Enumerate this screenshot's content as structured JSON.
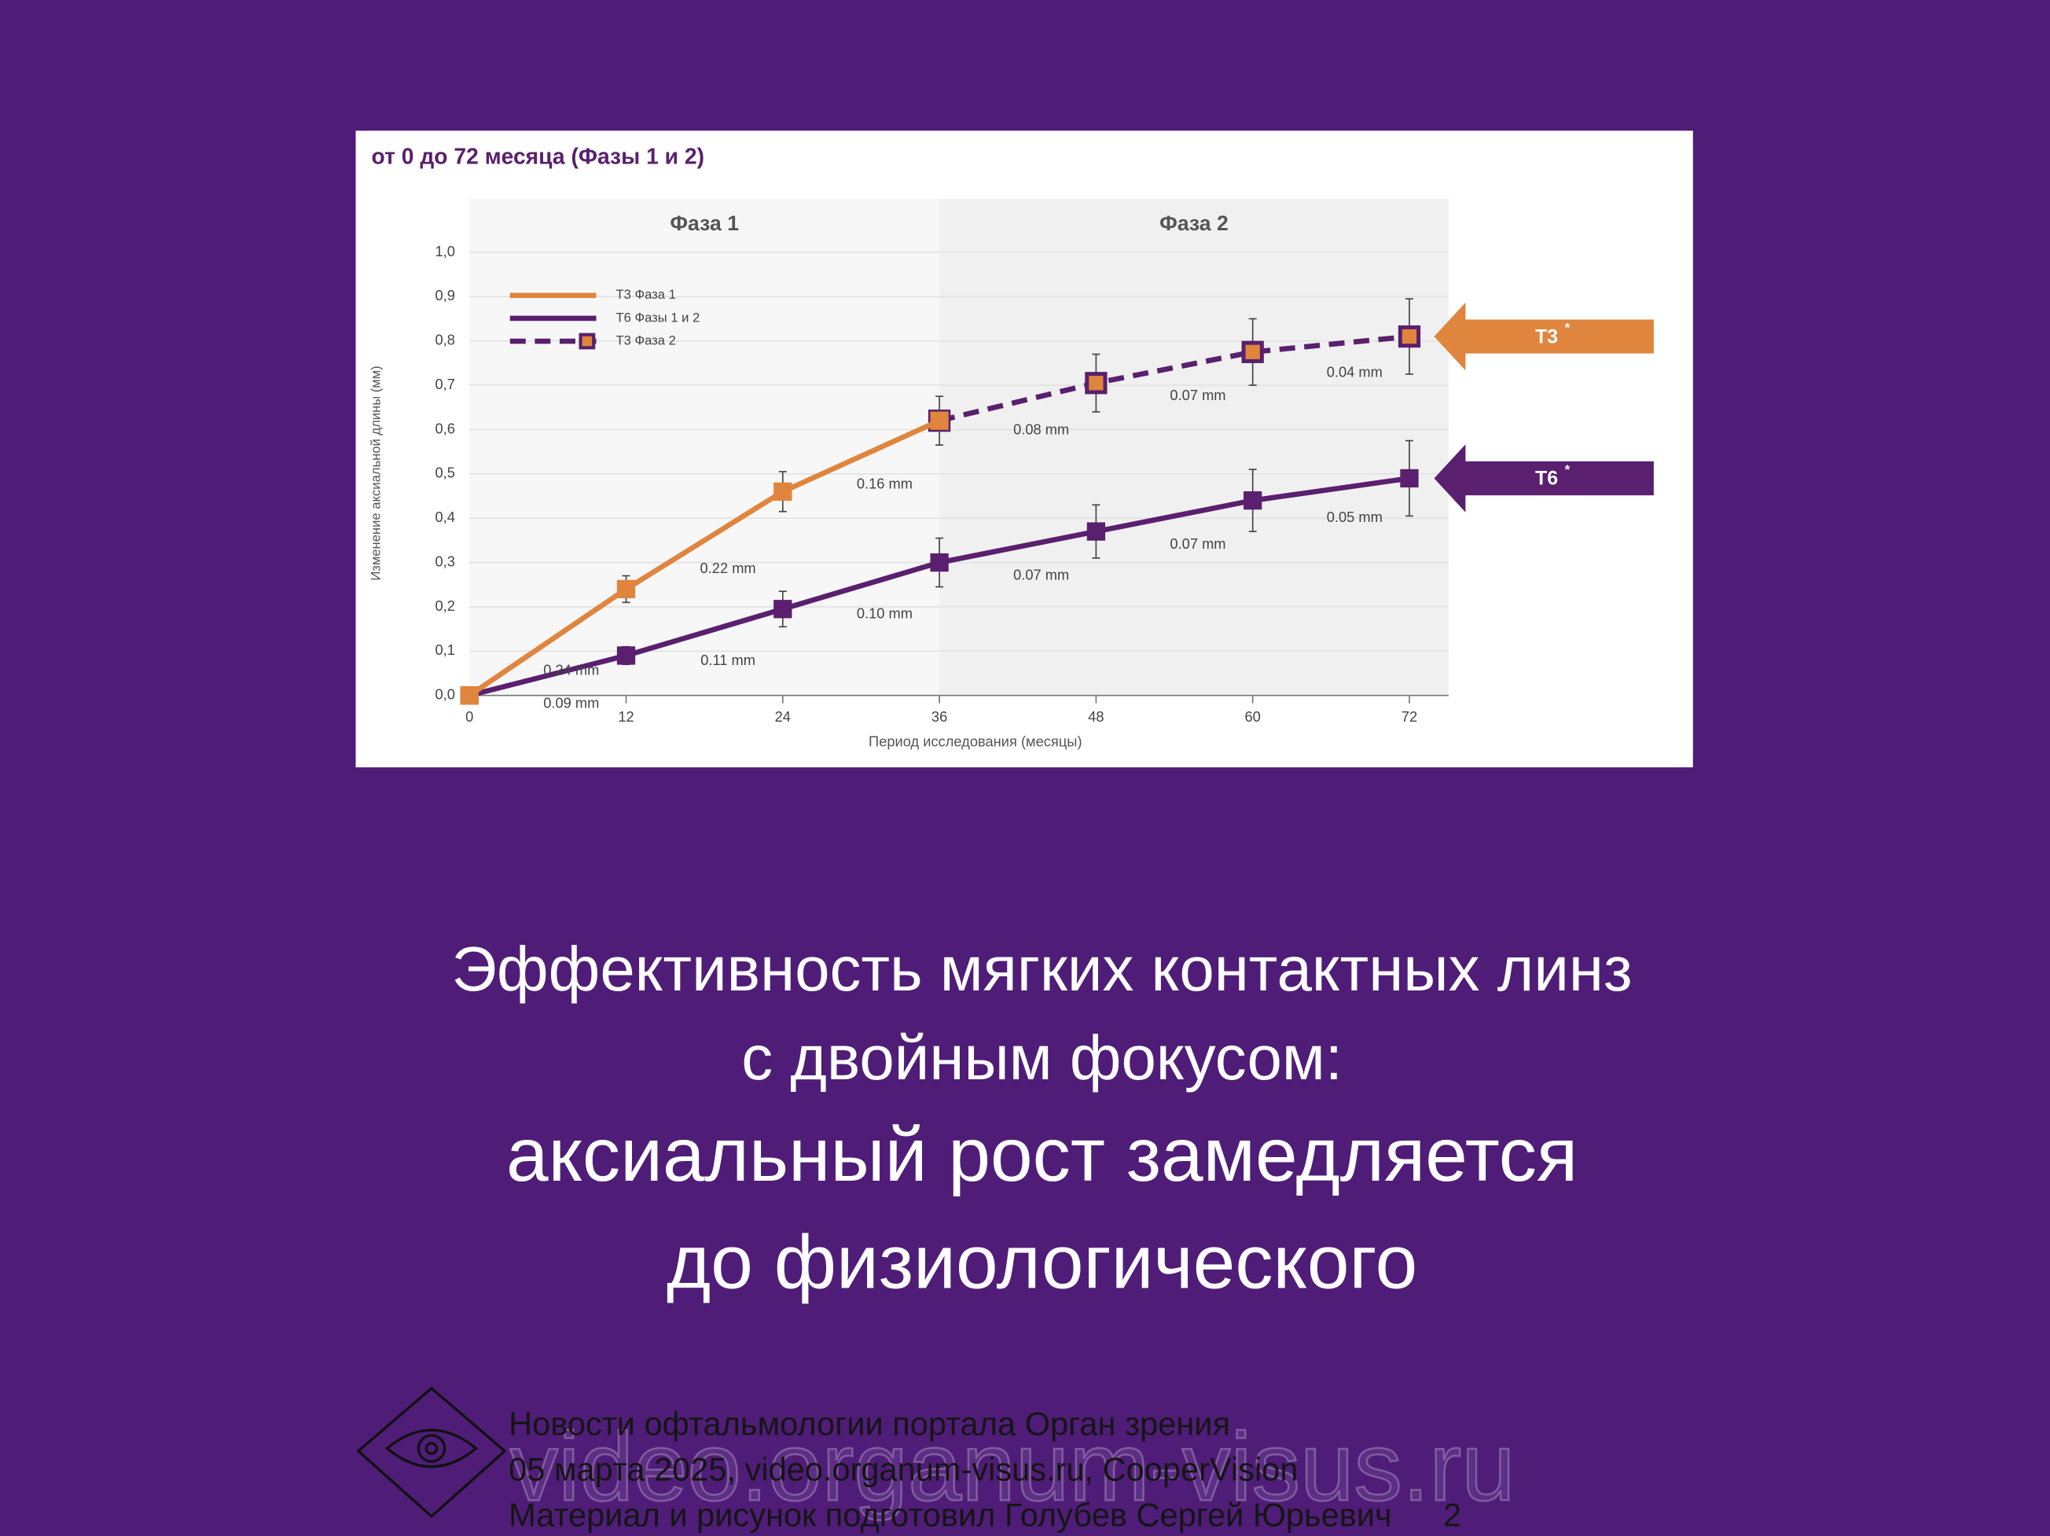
{
  "chart_data": {
    "type": "line",
    "title": "от 0 до 72 месяца (Фазы 1 и 2)",
    "x_label": "Период исследования (месяцы)",
    "y_label": "Изменение аксиальной длины (мм)",
    "x": [
      0,
      12,
      24,
      36,
      48,
      60,
      72
    ],
    "xlim": [
      0,
      75
    ],
    "xticks": [
      0,
      12,
      24,
      36,
      48,
      60,
      72
    ],
    "ylim": [
      0,
      1
    ],
    "yticks": [
      {
        "value": 0,
        "label": "0,0"
      },
      {
        "value": 0.1,
        "label": "0,1"
      },
      {
        "value": 0.2,
        "label": "0,2"
      },
      {
        "value": 0.3,
        "label": "0,3"
      },
      {
        "value": 0.4,
        "label": "0,4"
      },
      {
        "value": 0.5,
        "label": "0,5"
      },
      {
        "value": 0.6,
        "label": "0,6"
      },
      {
        "value": 0.7,
        "label": "0,7"
      },
      {
        "value": 0.8,
        "label": "0,8"
      },
      {
        "value": 0.9,
        "label": "0,9"
      },
      {
        "value": 1,
        "label": "1,0"
      }
    ],
    "grid": true,
    "phases": [
      {
        "label": "Фаза 1",
        "start": 0,
        "end": 36,
        "color": "#f7f7f7"
      },
      {
        "label": "Фаза 2",
        "start": 36,
        "end": 75,
        "color": "#f0f0f0"
      }
    ],
    "series": [
      {
        "name": "Т3 Фаза 2",
        "color": "#5a1f6e",
        "fill": "#e0853e",
        "dashed": true,
        "values": [
          null,
          null,
          null,
          0.62,
          0.705,
          0.775,
          0.81
        ],
        "errors": [
          null,
          null,
          null,
          null,
          0.065,
          0.075,
          0.085
        ],
        "increments": [
          null,
          null,
          null,
          null,
          "0.08 mm",
          "0.07 mm",
          "0.04 mm"
        ],
        "end_label": "Т3",
        "end_mark": "*",
        "end_color": "#e0853e"
      },
      {
        "name": "Т6 Фазы 1 и 2",
        "color": "#5a1f6e",
        "fill": "#5a1f6e",
        "dashed": false,
        "values": [
          0,
          0.09,
          0.195,
          0.3,
          0.37,
          0.44,
          0.49
        ],
        "errors": [
          null,
          0.02,
          0.04,
          0.055,
          0.06,
          0.07,
          0.085
        ],
        "increments": [
          null,
          "0.09 mm",
          "0.11 mm",
          "0.10 mm",
          "0.07 mm",
          "0.07 mm",
          "0.05 mm"
        ],
        "end_label": "Т6",
        "end_mark": "*",
        "end_color": "#5a1f6e"
      },
      {
        "name": "Т3 Фаза 1",
        "color": "#e0853e",
        "fill": "#e0853e",
        "dashed": false,
        "values": [
          0,
          0.24,
          0.46,
          0.62,
          null,
          null,
          null
        ],
        "errors": [
          null,
          0.03,
          0.045,
          0.055,
          null,
          null,
          null
        ],
        "increments": [
          null,
          "0.24 mm",
          "0.22 mm",
          "0.16 mm",
          null,
          null,
          null
        ]
      }
    ],
    "legend_order": [
      2,
      1,
      0
    ]
  },
  "slide": {
    "heading": [
      "Эффективность мягких контактных линз",
      "с двойным фокусом:",
      "аксиальный рост замедляется",
      "до физиологического"
    ],
    "footer": [
      "Новости офтальмологии портала Орган зрения",
      "05 марта 2025, video.organum-visus.ru, CooperVision",
      "Материал и рисунок подготовил Голубев Сергей Юрьевич"
    ],
    "page": "2",
    "watermark": "video.organum-visus.ru"
  }
}
